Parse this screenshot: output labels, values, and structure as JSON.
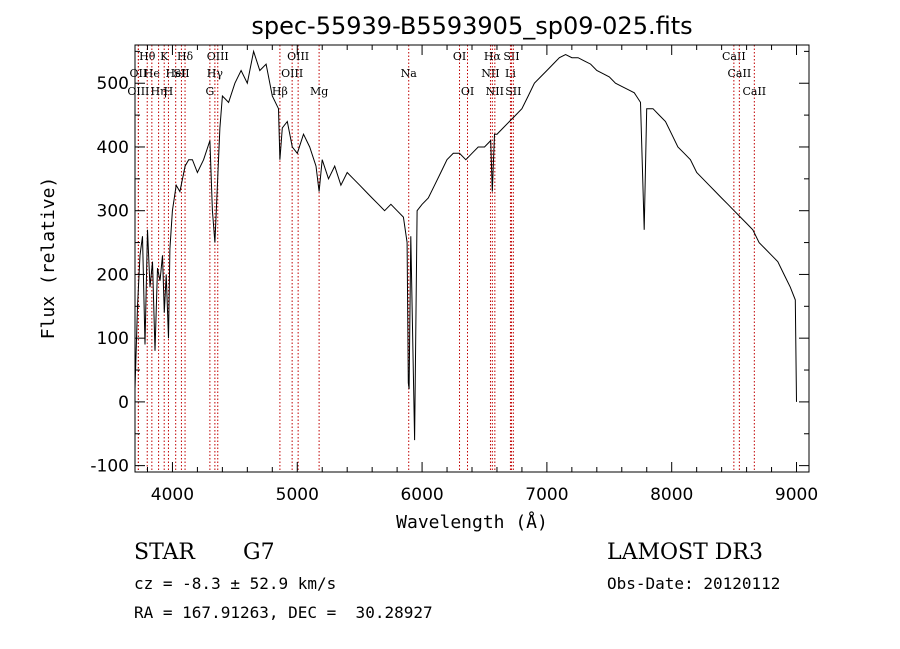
{
  "chart_data": {
    "type": "line",
    "title": "spec-55939-B5593905_sp09-025.fits",
    "xlabel": "Wavelength (Å)",
    "ylabel": "Flux (relative)",
    "xlim": [
      3700,
      9100
    ],
    "ylim": [
      -110,
      560
    ],
    "xticks": [
      4000,
      5000,
      6000,
      7000,
      8000,
      9000
    ],
    "yticks": [
      -100,
      0,
      100,
      200,
      300,
      400,
      500
    ],
    "grid": false,
    "series": [
      {
        "line_color": "#000000",
        "x": [
          3700,
          3720,
          3740,
          3760,
          3780,
          3800,
          3820,
          3840,
          3860,
          3880,
          3900,
          3920,
          3935,
          3950,
          3968,
          3980,
          4000,
          4030,
          4060,
          4101,
          4130,
          4160,
          4200,
          4250,
          4300,
          4320,
          4340,
          4360,
          4380,
          4400,
          4450,
          4500,
          4550,
          4600,
          4650,
          4700,
          4750,
          4800,
          4850,
          4861,
          4880,
          4920,
          4960,
          5000,
          5050,
          5100,
          5150,
          5175,
          5200,
          5250,
          5300,
          5350,
          5400,
          5450,
          5500,
          5550,
          5600,
          5650,
          5700,
          5750,
          5800,
          5850,
          5880,
          5890,
          5896,
          5910,
          5940,
          5960,
          6000,
          6050,
          6100,
          6150,
          6200,
          6250,
          6300,
          6350,
          6400,
          6450,
          6500,
          6550,
          6563,
          6580,
          6600,
          6650,
          6700,
          6750,
          6800,
          6850,
          6900,
          6950,
          7000,
          7050,
          7100,
          7150,
          7200,
          7250,
          7300,
          7350,
          7400,
          7450,
          7500,
          7550,
          7600,
          7650,
          7700,
          7750,
          7780,
          7800,
          7850,
          7900,
          7950,
          8000,
          8050,
          8100,
          8150,
          8200,
          8250,
          8300,
          8350,
          8400,
          8450,
          8500,
          8550,
          8600,
          8650,
          8700,
          8750,
          8800,
          8850,
          8900,
          8950,
          8990,
          9000
        ],
        "y": [
          20,
          150,
          230,
          260,
          90,
          270,
          180,
          220,
          80,
          210,
          190,
          230,
          140,
          200,
          100,
          240,
          300,
          340,
          330,
          370,
          380,
          380,
          360,
          380,
          410,
          300,
          250,
          340,
          430,
          480,
          470,
          500,
          520,
          500,
          550,
          520,
          530,
          480,
          460,
          380,
          430,
          440,
          400,
          390,
          420,
          400,
          370,
          330,
          380,
          350,
          370,
          340,
          360,
          350,
          340,
          330,
          320,
          310,
          300,
          310,
          300,
          290,
          250,
          30,
          20,
          260,
          -60,
          300,
          310,
          320,
          340,
          360,
          380,
          390,
          390,
          380,
          390,
          400,
          400,
          410,
          330,
          420,
          420,
          430,
          440,
          450,
          460,
          480,
          500,
          510,
          520,
          530,
          540,
          545,
          540,
          540,
          535,
          530,
          520,
          515,
          510,
          500,
          495,
          490,
          485,
          470,
          270,
          460,
          460,
          450,
          440,
          420,
          400,
          390,
          380,
          360,
          350,
          340,
          330,
          320,
          310,
          300,
          290,
          280,
          270,
          250,
          240,
          230,
          220,
          200,
          180,
          160,
          0
        ]
      }
    ],
    "lines": [
      {
        "w": 3798,
        "row": 1,
        "label": "Hθ"
      },
      {
        "w": 3727,
        "row": 2,
        "label": "OII"
      },
      {
        "w": 3727,
        "row": 3,
        "label": "OIII"
      },
      {
        "w": 3835,
        "row": 2,
        "label": "He"
      },
      {
        "w": 3889,
        "row": 3,
        "label": "Hη"
      },
      {
        "w": 3934,
        "row": 1,
        "label": "K"
      },
      {
        "w": 3968,
        "row": 3,
        "label": "H"
      },
      {
        "w": 4026,
        "row": 2,
        "label": "HeI"
      },
      {
        "w": 4072,
        "row": 2,
        "label": "SII"
      },
      {
        "w": 4101,
        "row": 1,
        "label": "Hδ"
      },
      {
        "w": 4300,
        "row": 3,
        "label": "G"
      },
      {
        "w": 4340,
        "row": 2,
        "label": "Hγ"
      },
      {
        "w": 4363,
        "row": 1,
        "label": "OIII"
      },
      {
        "w": 4861,
        "row": 3,
        "label": "Hβ"
      },
      {
        "w": 4959,
        "row": 2,
        "label": "OIII"
      },
      {
        "w": 5007,
        "row": 1,
        "label": "OIII"
      },
      {
        "w": 5175,
        "row": 3,
        "label": "Mg"
      },
      {
        "w": 5893,
        "row": 2,
        "label": "Na"
      },
      {
        "w": 6300,
        "row": 1,
        "label": "OI"
      },
      {
        "w": 6364,
        "row": 3,
        "label": "OI"
      },
      {
        "w": 6548,
        "row": 2,
        "label": "NII"
      },
      {
        "w": 6563,
        "row": 1,
        "label": "Hα"
      },
      {
        "w": 6583,
        "row": 3,
        "label": "NII"
      },
      {
        "w": 6708,
        "row": 2,
        "label": "Li"
      },
      {
        "w": 6716,
        "row": 1,
        "label": "SII"
      },
      {
        "w": 6731,
        "row": 3,
        "label": "SII"
      },
      {
        "w": 8498,
        "row": 1,
        "label": "CaII"
      },
      {
        "w": 8542,
        "row": 2,
        "label": "CaII"
      },
      {
        "w": 8662,
        "row": 3,
        "label": "CaII"
      }
    ]
  },
  "info": {
    "object_type": "STAR",
    "subclass": "G7",
    "survey": "LAMOST DR3",
    "cz": "cz = -8.3 ± 52.9 km/s",
    "obs_date": "Obs-Date: 20120112",
    "coords": "RA = 167.91263, DEC =  30.28927"
  }
}
